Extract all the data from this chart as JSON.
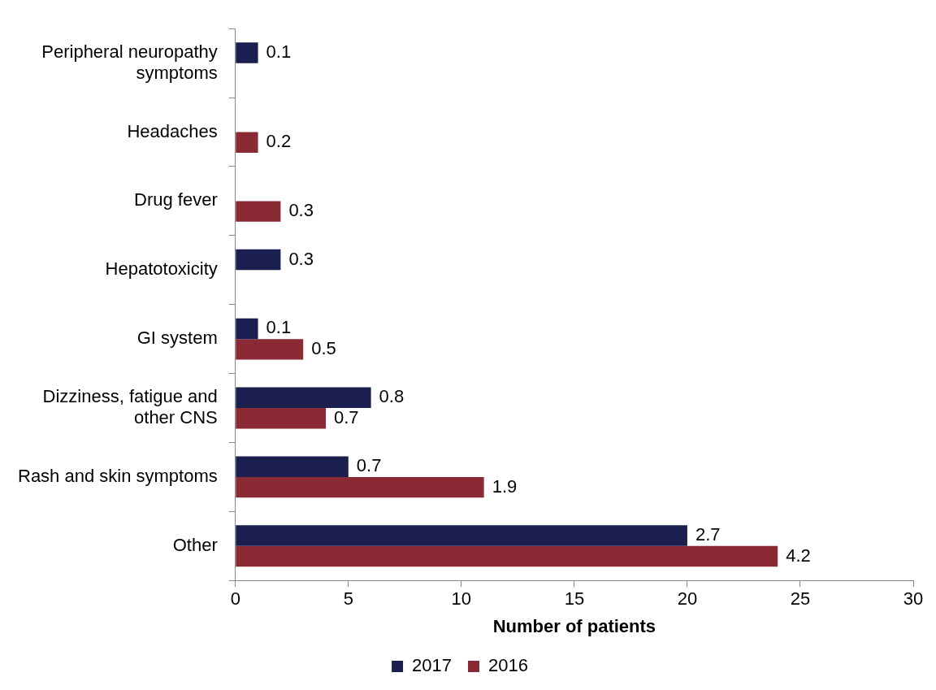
{
  "chart_data": {
    "type": "bar",
    "orientation": "horizontal",
    "xlabel": "Number of patients",
    "categories": [
      "Peripheral neuropathy symptoms",
      "Headaches",
      "Drug fever",
      "Hepatotoxicity",
      "GI system",
      "Dizziness, fatigue and other CNS",
      "Rash and skin symptoms",
      "Other"
    ],
    "series": [
      {
        "name": "2017",
        "color": "#1a1f4f",
        "values": [
          1,
          null,
          null,
          2,
          1,
          6,
          5,
          20
        ]
      },
      {
        "name": "2016",
        "color": "#8a2a35",
        "values": [
          null,
          1,
          2,
          null,
          3,
          4,
          11,
          24
        ]
      }
    ],
    "annotations": [
      {
        "text": "0.1",
        "x": 1,
        "y": "Peripheral neuropathy symptoms"
      },
      {
        "text": "0.2",
        "x": 1,
        "y": "Headaches"
      },
      {
        "text": "0.3",
        "x": 2,
        "y": "Drug fever"
      },
      {
        "text": "0.3",
        "x": 2,
        "y": "Hepatotoxicity"
      },
      {
        "text": "0.1",
        "x": 1,
        "y": "GI system"
      },
      {
        "text": "0.5",
        "x": 3,
        "y": "GI system"
      },
      {
        "text": "0.8",
        "x": 6,
        "y": "Dizziness, fatigue and other CNS"
      },
      {
        "text": "0.7",
        "x": 4,
        "y": "Dizziness, fatigue and other CNS"
      },
      {
        "text": "0.7",
        "x": 5,
        "y": "Rash and skin symptoms"
      },
      {
        "text": "1.9",
        "x": 11,
        "y": "Rash and skin symptoms"
      },
      {
        "text": "2.7",
        "x": 20,
        "y": "Other"
      },
      {
        "text": "4.2",
        "x": 24,
        "y": "Other"
      }
    ],
    "xlim": [
      0,
      30
    ],
    "xticks": [
      0,
      5,
      10,
      15,
      20,
      25,
      30
    ],
    "grid": false,
    "legend": "bottom"
  }
}
